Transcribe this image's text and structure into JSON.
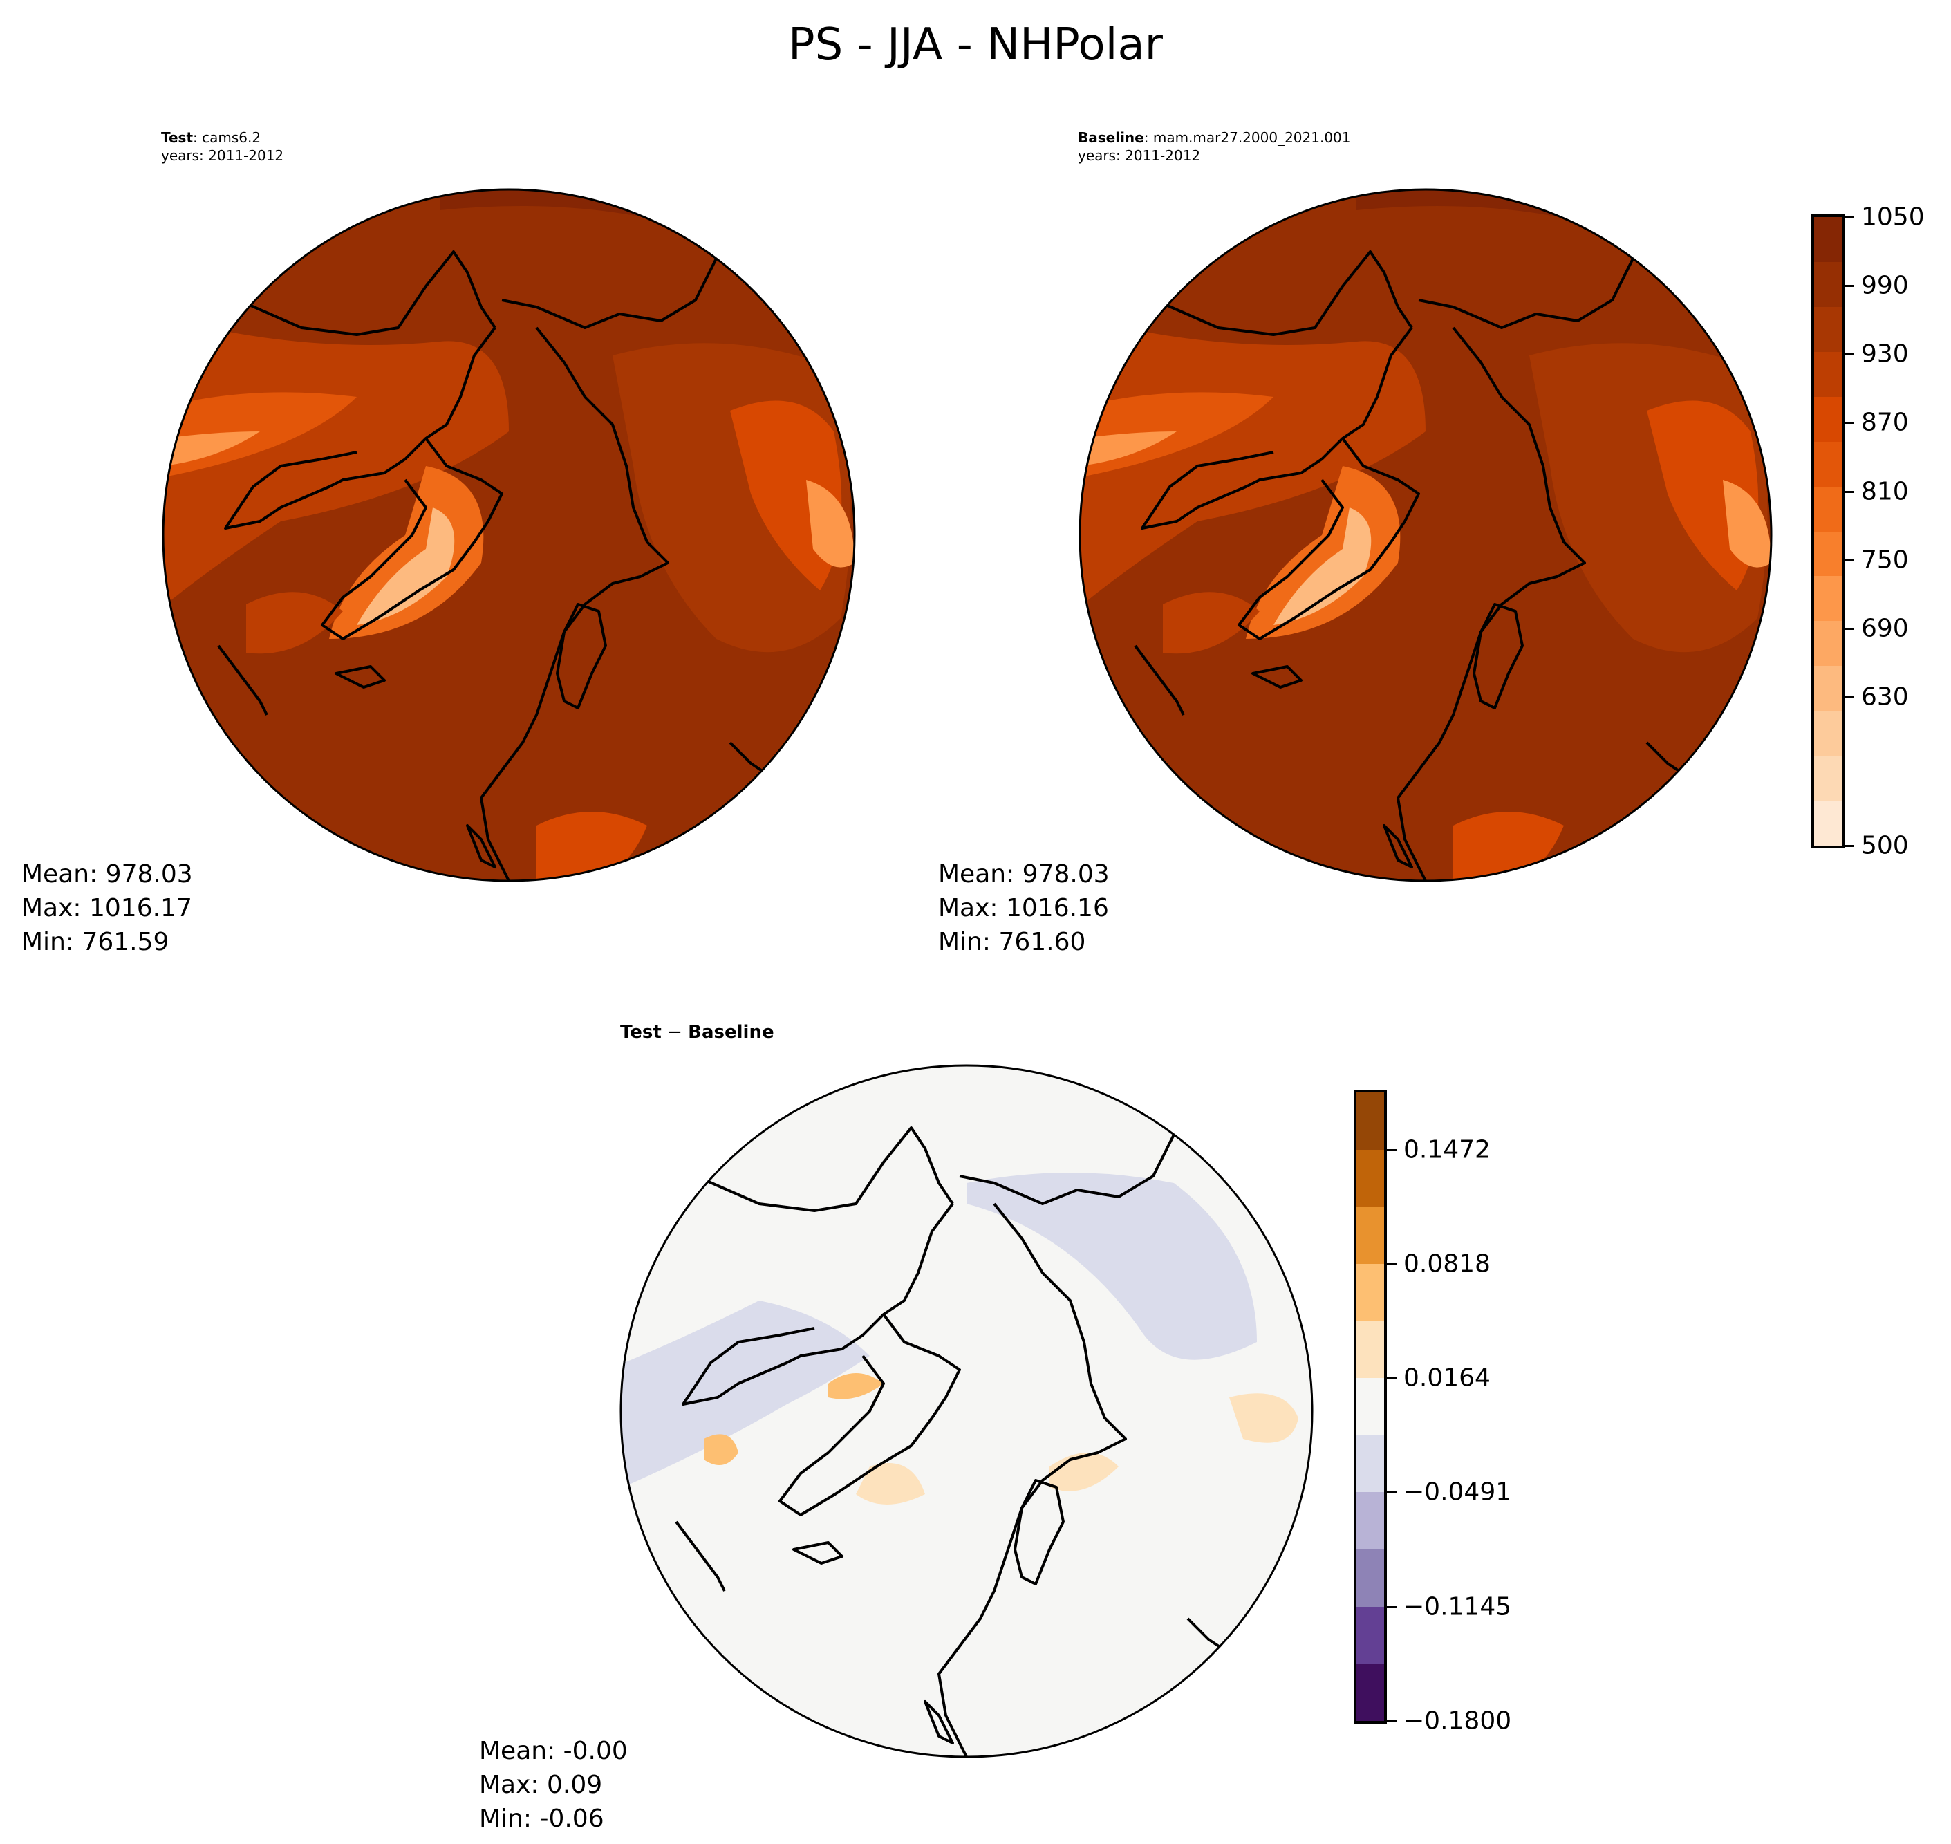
{
  "title": "PS - JJA - NHPolar",
  "chart_data": [
    {
      "type": "heatmap",
      "projection": "north-polar-stereographic",
      "subtitle_bold": "Test",
      "subtitle_rest": ": cams6.2",
      "years": "years: 2011-2012",
      "stats": {
        "mean": "Mean: 978.03",
        "max": "Max: 1016.17",
        "min": "Min: 761.59"
      }
    },
    {
      "type": "heatmap",
      "projection": "north-polar-stereographic",
      "subtitle_bold": "Baseline",
      "subtitle_rest": ": mam.mar27.2000_2021.001",
      "years": "years: 2011-2012",
      "stats": {
        "mean": "Mean: 978.03",
        "max": "Max: 1016.16",
        "min": "Min: 761.60"
      },
      "colorbar": {
        "range": [
          500,
          1050
        ],
        "ticks": [
          "500",
          "630",
          "690",
          "750",
          "810",
          "870",
          "930",
          "990",
          "1050"
        ],
        "tick_values": [
          500,
          630,
          690,
          750,
          810,
          870,
          930,
          990,
          1050
        ],
        "colors": [
          "#fee8d3",
          "#fdd9b4",
          "#fdcb9b",
          "#fdba7f",
          "#fda863",
          "#fd974a",
          "#f87f2c",
          "#f06b18",
          "#e35609",
          "#d84801",
          "#bd3e02",
          "#a83703",
          "#962f03",
          "#852604"
        ]
      }
    },
    {
      "type": "heatmap",
      "projection": "north-polar-stereographic",
      "title_bold_left": "Test",
      "title_op": " − ",
      "title_bold_right": "Baseline",
      "stats": {
        "mean": "Mean: -0.00",
        "max": "Max:  0.09",
        "min": "Min: -0.06"
      },
      "colorbar": {
        "range": [
          -0.18,
          0.18
        ],
        "ticks": [
          "−0.1800",
          "−0.1145",
          "−0.0491",
          "0.0164",
          "0.0818",
          "0.1472"
        ],
        "tick_values": [
          -0.18,
          -0.1145,
          -0.0491,
          0.0164,
          0.0818,
          0.1472
        ],
        "colors": [
          "#3f0f5e",
          "#634094",
          "#8e83b6",
          "#b8b3d6",
          "#dadceb",
          "#f6f6f4",
          "#fde2bd",
          "#fdbf72",
          "#e8922e",
          "#c06409",
          "#954706"
        ]
      }
    }
  ]
}
